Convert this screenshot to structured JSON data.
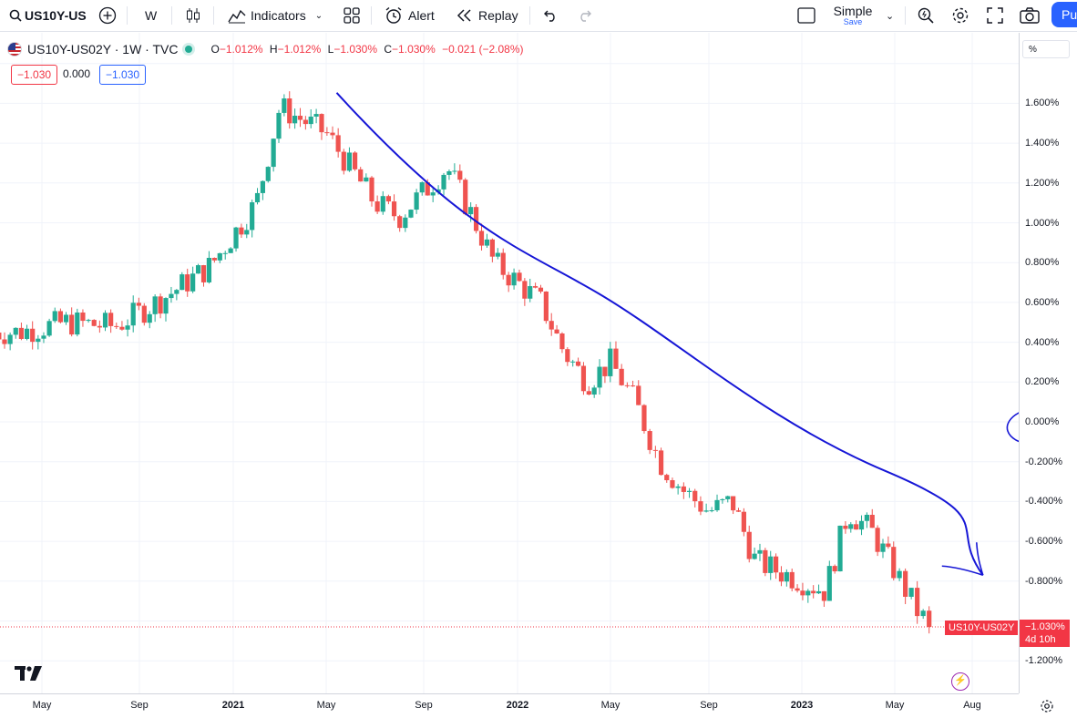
{
  "toolbar": {
    "symbol": "US10Y-US",
    "interval": "W",
    "indicators_label": "Indicators",
    "alert_label": "Alert",
    "replay_label": "Replay",
    "layout_name": "Simple",
    "layout_sub": "Save",
    "publish_label": "Pu",
    "icons": [
      "search-icon",
      "add-symbol-icon",
      "candles-icon",
      "indicators-icon",
      "templates-icon",
      "alert-icon",
      "replay-icon",
      "undo-icon",
      "redo-icon",
      "layout-icon",
      "chevron-down-icon",
      "quick-search-icon",
      "settings-icon",
      "fullscreen-icon",
      "camera-icon"
    ]
  },
  "legend": {
    "title": "US10Y-US02Y · 1W · TVC",
    "o_label": "O",
    "o_value": "−1.012%",
    "h_label": "H",
    "h_value": "−1.012%",
    "l_label": "L",
    "l_value": "−1.030%",
    "c_label": "C",
    "c_value": "−1.030%",
    "change": "−0.021 (−2.08%)",
    "sell": "−1.030",
    "spread": "0.000",
    "buy": "−1.030"
  },
  "scale": {
    "mode_label": "%",
    "symbol_tag": "US10Y-US02Y",
    "last_value": "−1.030%",
    "countdown": "4d 10h"
  },
  "colors": {
    "up": "#22ab94",
    "down": "#ef5350",
    "trendline": "#1616d6",
    "price_line": "#f23645"
  },
  "chart_data": {
    "type": "candlestick",
    "symbol": "US10Y-US02Y",
    "interval": "1W",
    "y_tick_labels": [
      "1.600%",
      "1.400%",
      "1.200%",
      "1.000%",
      "0.800%",
      "0.600%",
      "0.400%",
      "0.200%",
      "0.000%",
      "-0.200%",
      "-0.400%",
      "-0.600%",
      "-0.800%",
      "-1.200%"
    ],
    "x_tick_labels": [
      "May",
      "Sep",
      "2021",
      "May",
      "Sep",
      "2022",
      "May",
      "Sep",
      "2023",
      "May",
      "Aug"
    ],
    "ylim": [
      -1.35,
      1.85
    ],
    "last_price": -1.03,
    "approx_close_path": [
      {
        "date": "2020-04",
        "value": 0.45
      },
      {
        "date": "2020-06",
        "value": 0.5
      },
      {
        "date": "2020-08",
        "value": 0.48
      },
      {
        "date": "2020-10",
        "value": 0.62
      },
      {
        "date": "2020-12",
        "value": 0.78
      },
      {
        "date": "2021-02",
        "value": 1.1
      },
      {
        "date": "2021-03",
        "value": 1.58
      },
      {
        "date": "2021-05",
        "value": 1.45
      },
      {
        "date": "2021-07",
        "value": 1.1
      },
      {
        "date": "2021-08",
        "value": 1.03
      },
      {
        "date": "2021-10",
        "value": 1.28
      },
      {
        "date": "2021-11",
        "value": 1.05
      },
      {
        "date": "2021-12",
        "value": 0.8
      },
      {
        "date": "2022-02",
        "value": 0.6
      },
      {
        "date": "2022-03",
        "value": 0.35
      },
      {
        "date": "2022-04",
        "value": 0.2
      },
      {
        "date": "2022-05",
        "value": 0.3
      },
      {
        "date": "2022-06",
        "value": 0.1
      },
      {
        "date": "2022-07",
        "value": -0.2
      },
      {
        "date": "2022-08",
        "value": -0.35
      },
      {
        "date": "2022-09",
        "value": -0.45
      },
      {
        "date": "2022-10",
        "value": -0.4
      },
      {
        "date": "2022-11",
        "value": -0.7
      },
      {
        "date": "2022-12",
        "value": -0.75
      },
      {
        "date": "2023-02",
        "value": -0.85
      },
      {
        "date": "2023-03",
        "value": -0.45
      },
      {
        "date": "2023-04",
        "value": -0.55
      },
      {
        "date": "2023-05",
        "value": -0.75
      },
      {
        "date": "2023-06",
        "value": -0.98
      },
      {
        "date": "2023-07",
        "value": -1.03
      }
    ],
    "annotations": [
      {
        "type": "trendline",
        "from": {
          "date": "2021-07",
          "value": 1.63
        },
        "to": {
          "date": "2023-07",
          "value": -0.77
        }
      },
      {
        "type": "circle",
        "around_value": 0.0
      }
    ]
  }
}
